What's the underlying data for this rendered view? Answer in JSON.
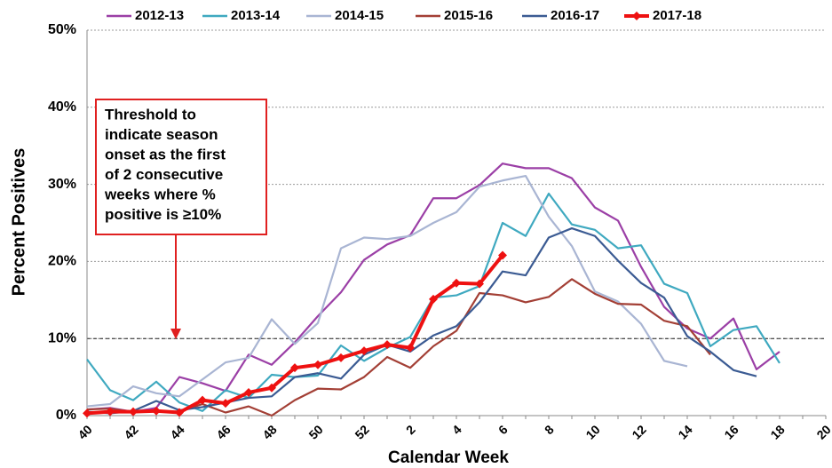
{
  "chart_data": {
    "type": "line",
    "x_label": "Calendar Week",
    "y_label": "Percent Positives",
    "categories": [
      "40",
      null,
      "42",
      null,
      "44",
      null,
      "46",
      null,
      "48",
      null,
      "50",
      null,
      "52",
      null,
      "2",
      null,
      "4",
      null,
      "6",
      null,
      "8",
      null,
      "10",
      null,
      "12",
      null,
      "14",
      null,
      "16",
      null,
      "18",
      null,
      "20"
    ],
    "ylim": [
      0,
      50
    ],
    "yticks": [
      {
        "value": 0,
        "label": "0%"
      },
      {
        "value": 10,
        "label": "10%"
      },
      {
        "value": 20,
        "label": "20%"
      },
      {
        "value": 30,
        "label": "30%"
      },
      {
        "value": 40,
        "label": "40%"
      },
      {
        "value": 50,
        "label": "50%"
      }
    ],
    "grid": true,
    "threshold": 10,
    "annotation": [
      "Threshold to",
      "indicate season",
      "onset  as the first",
      "of 2 consecutive",
      "weeks where %",
      "positive is ≥10%"
    ],
    "series": [
      {
        "name": "2012-13",
        "color": "#9b3fa6",
        "values": [
          0.8,
          1.0,
          0.5,
          1.0,
          5.0,
          4.2,
          3.2,
          7.9,
          6.6,
          9.5,
          12.9,
          16.0,
          20.2,
          22.2,
          23.4,
          28.2,
          28.2,
          29.9,
          32.7,
          32.1,
          32.1,
          30.8,
          27.0,
          25.3,
          19.3,
          14.1,
          11.3,
          10.0,
          12.6,
          6.0,
          8.3,
          null,
          null
        ]
      },
      {
        "name": "2013-14",
        "color": "#3fa9c0",
        "values": [
          7.3,
          3.3,
          2.0,
          4.4,
          1.7,
          0.6,
          3.3,
          2.3,
          5.3,
          5.0,
          5.2,
          9.1,
          7.1,
          8.8,
          10.2,
          15.3,
          15.6,
          16.8,
          25.0,
          23.3,
          28.8,
          24.8,
          24.1,
          21.7,
          22.1,
          17.1,
          15.9,
          9.0,
          11.1,
          11.6,
          6.8,
          null,
          null
        ]
      },
      {
        "name": "2014-15",
        "color": "#a9b5d3",
        "values": [
          1.2,
          1.5,
          3.8,
          2.9,
          2.5,
          4.7,
          6.9,
          7.5,
          12.5,
          9.3,
          12.0,
          21.7,
          23.1,
          22.9,
          23.3,
          25.0,
          26.4,
          29.7,
          30.5,
          31.1,
          25.8,
          22.0,
          16.1,
          14.8,
          11.9,
          7.1,
          6.4,
          null,
          null,
          null,
          null,
          null,
          null
        ]
      },
      {
        "name": "2015-16",
        "color": "#a33f35",
        "values": [
          0.8,
          0.9,
          0.5,
          0.6,
          0.5,
          1.5,
          0.4,
          1.2,
          0.0,
          2.0,
          3.5,
          3.4,
          5.0,
          7.6,
          6.2,
          9.0,
          11.0,
          15.9,
          15.6,
          14.7,
          15.4,
          17.7,
          15.8,
          14.5,
          14.4,
          12.3,
          11.6,
          7.9,
          null,
          null,
          null,
          null,
          null
        ]
      },
      {
        "name": "2016-17",
        "color": "#3b5b93",
        "values": [
          0.5,
          0.3,
          0.6,
          1.9,
          0.7,
          1.1,
          1.7,
          2.3,
          2.5,
          5.0,
          5.5,
          4.8,
          7.9,
          9.2,
          8.3,
          10.4,
          11.6,
          14.7,
          18.7,
          18.2,
          23.1,
          24.3,
          23.3,
          20.1,
          17.2,
          15.3,
          10.3,
          8.3,
          5.9,
          5.1,
          null,
          null,
          null
        ]
      },
      {
        "name": "2017-18",
        "color": "#ee1111",
        "markers": true,
        "values": [
          0.3,
          0.5,
          0.5,
          0.6,
          0.4,
          2.0,
          1.6,
          3.0,
          3.6,
          6.2,
          6.6,
          7.5,
          8.4,
          9.2,
          8.8,
          15.1,
          17.2,
          17.1,
          20.8,
          null,
          null,
          null,
          null,
          null,
          null,
          null,
          null,
          null,
          null,
          null,
          null,
          null,
          null
        ]
      }
    ]
  }
}
